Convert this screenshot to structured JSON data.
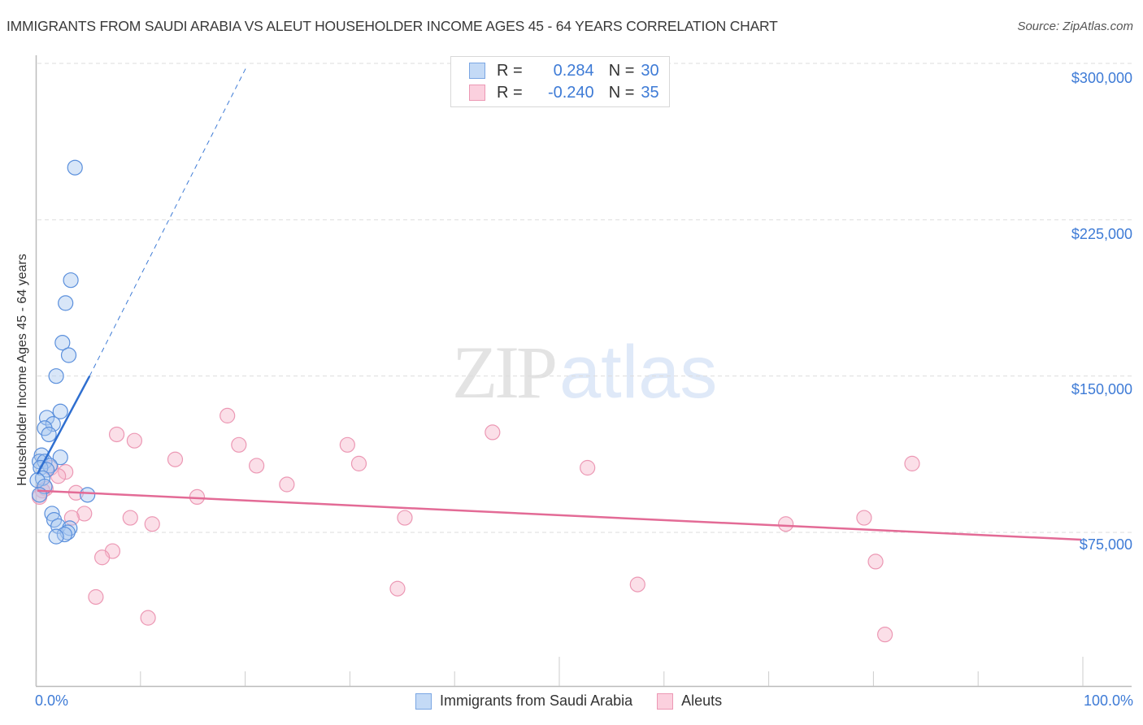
{
  "header": {
    "title": "IMMIGRANTS FROM SAUDI ARABIA VS ALEUT HOUSEHOLDER INCOME AGES 45 - 64 YEARS CORRELATION CHART",
    "source": "Source: ZipAtlas.com"
  },
  "watermark": {
    "zip": "ZIP",
    "atlas": "atlas"
  },
  "axes": {
    "ylabel": "Householder Income Ages 45 - 64 years",
    "y_ticks": [
      "$300,000",
      "$225,000",
      "$150,000",
      "$75,000"
    ],
    "x_min_label": "0.0%",
    "x_max_label": "100.0%"
  },
  "legend": {
    "rows": [
      {
        "r_label": "R =",
        "r_value": "0.284",
        "n_label": "N =",
        "n_value": "30",
        "color": "#a8c8f0"
      },
      {
        "r_label": "R =",
        "r_value": "-0.240",
        "n_label": "N =",
        "n_value": "35",
        "color": "#f7b8cc"
      }
    ],
    "bottom": [
      {
        "label": "Immigrants from Saudi Arabia",
        "color": "#a8c8f0"
      },
      {
        "label": "Aleuts",
        "color": "#f7b8cc"
      }
    ]
  },
  "colors": {
    "blue": "#3e7bd6",
    "blue_fill": "#a8c8f0",
    "pink": "#e36b96",
    "pink_fill": "#f7b8cc",
    "grid": "#dddddd"
  },
  "chart_data": {
    "type": "scatter",
    "title": "IMMIGRANTS FROM SAUDI ARABIA VS ALEUT HOUSEHOLDER INCOME AGES 45 - 64 YEARS CORRELATION CHART",
    "xlabel": "",
    "ylabel": "Householder Income Ages 45 - 64 years",
    "xlim": [
      0,
      100
    ],
    "ylim": [
      10000,
      310000
    ],
    "y_ticks": [
      75000,
      150000,
      225000,
      300000
    ],
    "x_ticks_labeled": [
      0,
      100
    ],
    "grid": "horizontal dashed",
    "legend_position": "top-center",
    "series": [
      {
        "name": "Immigrants from Saudi Arabia",
        "r": 0.284,
        "n": 30,
        "color": "#a8c8f0",
        "points": [
          [
            3.6,
            250000
          ],
          [
            3.2,
            196000
          ],
          [
            2.7,
            185000
          ],
          [
            2.4,
            166000
          ],
          [
            3.0,
            160000
          ],
          [
            1.8,
            150000
          ],
          [
            2.2,
            133000
          ],
          [
            0.9,
            130000
          ],
          [
            1.5,
            127000
          ],
          [
            0.7,
            125000
          ],
          [
            1.1,
            122000
          ],
          [
            0.4,
            112000
          ],
          [
            2.2,
            111000
          ],
          [
            0.2,
            109000
          ],
          [
            0.7,
            109000
          ],
          [
            1.2,
            107000
          ],
          [
            0.3,
            106000
          ],
          [
            0.9,
            105000
          ],
          [
            0.5,
            101000
          ],
          [
            0.0,
            100000
          ],
          [
            0.7,
            97000
          ],
          [
            0.2,
            93000
          ],
          [
            4.8,
            93000
          ],
          [
            1.4,
            84000
          ],
          [
            1.6,
            81000
          ],
          [
            2.0,
            78000
          ],
          [
            3.1,
            77000
          ],
          [
            2.9,
            75000
          ],
          [
            2.6,
            74000
          ],
          [
            1.8,
            73000
          ]
        ],
        "trend": {
          "x0": 0,
          "y0": 103000,
          "x1": 5,
          "y1": 150000,
          "extended_to": [
            20,
            298000
          ]
        }
      },
      {
        "name": "Aleuts",
        "r": -0.24,
        "n": 35,
        "color": "#f7b8cc",
        "points": [
          [
            18.2,
            131000
          ],
          [
            43.6,
            123000
          ],
          [
            7.6,
            122000
          ],
          [
            9.3,
            119000
          ],
          [
            19.3,
            117000
          ],
          [
            29.7,
            117000
          ],
          [
            13.2,
            110000
          ],
          [
            30.8,
            108000
          ],
          [
            83.8,
            108000
          ],
          [
            21.0,
            107000
          ],
          [
            52.7,
            106000
          ],
          [
            1.3,
            106000
          ],
          [
            2.7,
            104000
          ],
          [
            2.0,
            102000
          ],
          [
            23.9,
            98000
          ],
          [
            0.8,
            96000
          ],
          [
            0.5,
            95000
          ],
          [
            3.7,
            94000
          ],
          [
            15.3,
            92000
          ],
          [
            0.2,
            92000
          ],
          [
            4.5,
            84000
          ],
          [
            3.3,
            82000
          ],
          [
            8.9,
            82000
          ],
          [
            35.2,
            82000
          ],
          [
            79.2,
            82000
          ],
          [
            11.0,
            79000
          ],
          [
            71.7,
            79000
          ],
          [
            7.2,
            66000
          ],
          [
            6.2,
            63000
          ],
          [
            80.3,
            61000
          ],
          [
            57.5,
            50000
          ],
          [
            34.5,
            48000
          ],
          [
            5.6,
            44000
          ],
          [
            10.6,
            34000
          ],
          [
            81.2,
            26000
          ]
        ],
        "trend": {
          "x0": 0,
          "y0": 95000,
          "x1": 100,
          "y1": 71500
        }
      }
    ]
  }
}
